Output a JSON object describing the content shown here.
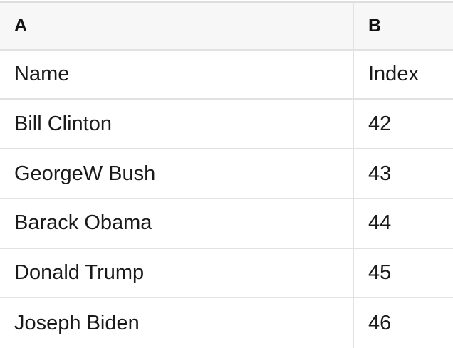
{
  "table": {
    "columns": [
      {
        "label": "A"
      },
      {
        "label": "B"
      }
    ],
    "rows": [
      {
        "a": "Name",
        "b": "Index"
      },
      {
        "a": "Bill Clinton",
        "b": "42"
      },
      {
        "a": "GeorgeW Bush",
        "b": "43"
      },
      {
        "a": "Barack Obama",
        "b": "44"
      },
      {
        "a": "Donald Trump",
        "b": "45"
      },
      {
        "a": "Joseph Biden",
        "b": "46"
      }
    ],
    "colors": {
      "header_background": "#f7f7f7",
      "gridline": "#e2e2e2",
      "text": "#1a1a1a"
    }
  }
}
